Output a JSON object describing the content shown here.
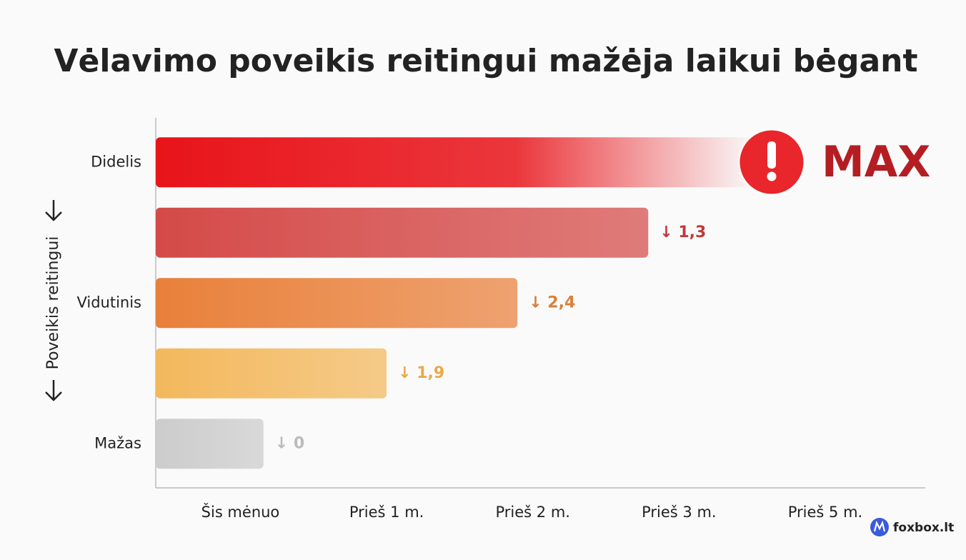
{
  "chart_data": {
    "type": "barh",
    "title": "Vėlavimo poveikis reitingui mažėja laikui bėgant",
    "y_axis_label": "Poveikis reitingui",
    "categories": [
      "Didelis",
      null,
      "Vidutinis",
      null,
      "Mažas"
    ],
    "values": [
      78,
      64,
      47,
      30,
      14
    ],
    "colors": [
      "#e8141a",
      "#d44a48",
      "#e9803a",
      "#f3b85c",
      "#cccccc"
    ],
    "bar_labels": [
      "MAX",
      "↓ 1,3",
      "↓ 2,4",
      "↓ 1,9",
      "↓ 0"
    ],
    "bar_label_colors": [
      "#b41e23",
      "#c0393b",
      "#d9803a",
      "#eaa94a",
      "#bbbbbb"
    ],
    "xlim": [
      0,
      100
    ],
    "xticks": [
      {
        "value": 11,
        "label": "Šis mėnuo"
      },
      {
        "value": 30,
        "label": "Prieš 1 m."
      },
      {
        "value": 49,
        "label": "Prieš 2 m."
      },
      {
        "value": 68,
        "label": "Prieš 3 m."
      },
      {
        "value": 87,
        "label": "Prieš 5 m."
      }
    ],
    "source": "foxbox.lt"
  }
}
